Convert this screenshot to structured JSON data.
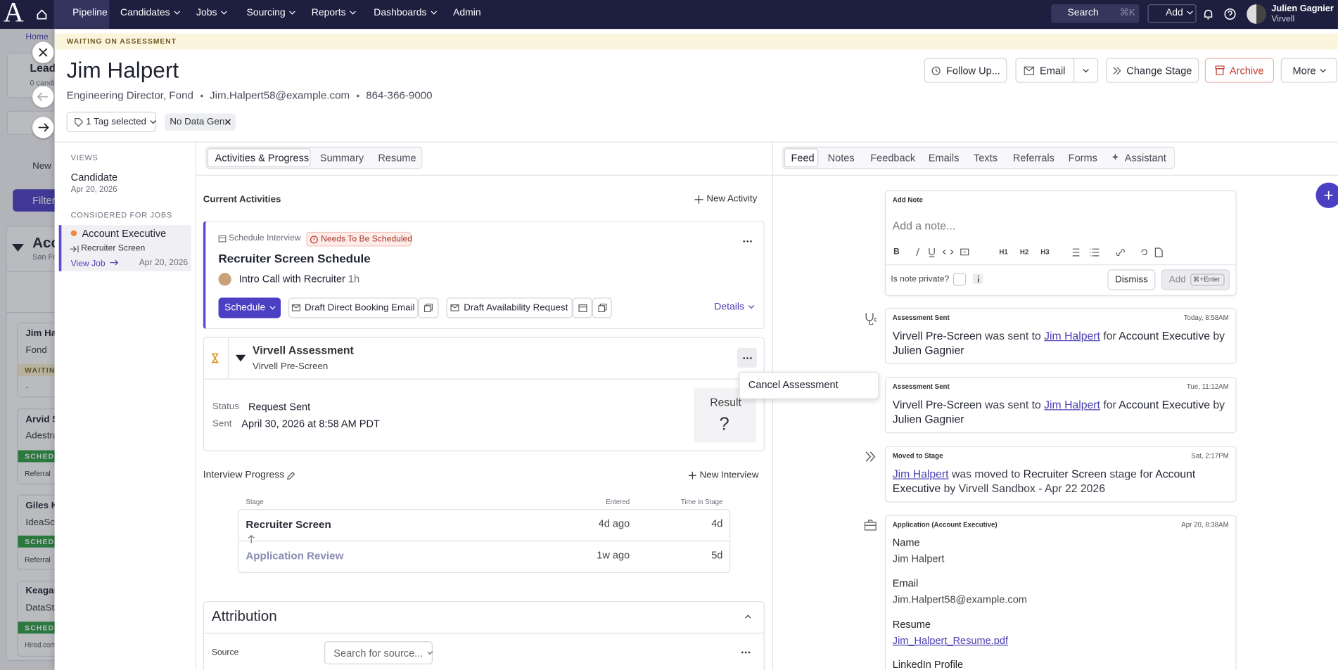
{
  "nav": {
    "logo": "A",
    "items": [
      "Pipeline",
      "Candidates",
      "Jobs",
      "Sourcing",
      "Reports",
      "Dashboards",
      "Admin"
    ],
    "search": "Search",
    "search_shortcut": "⌘K",
    "add": "Add",
    "user_name": "Julien Gagnier",
    "user_org": "Virvell"
  },
  "background": {
    "breadcrumb": "Home",
    "list_title": "Leads",
    "list_count": "0 candi",
    "new": "New",
    "filter": "Filter",
    "job_title": "Acc",
    "job_location": "San Fra",
    "cards": [
      {
        "name": "Jim Hal",
        "company": "Fond",
        "status": "WAITING",
        "source": "-"
      },
      {
        "name": "Arvid S",
        "company": "Adestra",
        "status": "SCHEDU",
        "source": "Referral"
      },
      {
        "name": "Giles K",
        "company": "IdeaSca",
        "status": "SCHEDU",
        "source": "Referral"
      },
      {
        "name": "Keagan",
        "company": "DataSta",
        "status": "SCHEDU",
        "source": "Hired.com"
      }
    ]
  },
  "banner": "WAITING ON ASSESSMENT",
  "candidate": {
    "name": "Jim Halpert",
    "title": "Engineering Director, Fond",
    "email": "Jim.Halpert58@example.com",
    "phone": "864-366-9000",
    "tags": "1 Tag selected",
    "tag": "No Data Gen"
  },
  "actions": [
    "Follow Up...",
    "Email",
    "Change Stage",
    "Archive",
    "More"
  ],
  "sidebar": {
    "views_heading": "VIEWS",
    "view_name": "Candidate",
    "view_date": "Apr 20, 2026",
    "jobs_heading": "CONSIDERED FOR JOBS",
    "job": "Account Executive",
    "stage": "Recruiter Screen",
    "view_job": "View Job",
    "job_date": "Apr 20, 2026"
  },
  "middle": {
    "tabs": [
      "Activities & Progress",
      "Summary",
      "Resume"
    ],
    "current_activities": "Current Activities",
    "new_activity": "New Activity",
    "activity": {
      "type": "Schedule Interview",
      "status": "Needs To Be Scheduled",
      "title": "Recruiter Screen Schedule",
      "interview": "Intro Call with Recruiter",
      "duration": "1h",
      "schedule": "Schedule",
      "draft_email": "Draft Direct Booking Email",
      "draft_request": "Draft Availability Request",
      "details": "Details"
    },
    "assessment": {
      "title": "Virvell Assessment",
      "subtitle": "Virvell Pre-Screen",
      "status_label": "Status",
      "status": "Request Sent",
      "sent_label": "Sent",
      "sent": "April 30, 2026 at 8:58 AM PDT",
      "result_label": "Result",
      "result": "?",
      "menu_item": "Cancel Assessment"
    },
    "interview_progress": {
      "title": "Interview Progress",
      "new_interview": "New Interview",
      "columns": [
        "Stage",
        "Entered",
        "Time in Stage"
      ],
      "rows": [
        [
          "Recruiter Screen",
          "4d ago",
          "4d"
        ],
        [
          "Application Review",
          "1w ago",
          "5d"
        ]
      ]
    },
    "attribution": {
      "title": "Attribution",
      "source_label": "Source",
      "source_placeholder": "Search for source..."
    }
  },
  "feed": {
    "tabs": [
      "Feed",
      "Notes",
      "Feedback",
      "Emails",
      "Texts",
      "Referrals",
      "Forms",
      "Assistant"
    ],
    "note": {
      "heading": "Add Note",
      "placeholder": "Add a note...",
      "toolbar": [
        "H1",
        "H2",
        "H3"
      ],
      "private_label": "Is note private?",
      "dismiss": "Dismiss",
      "add": "Add",
      "shortcut": "⌘+Enter"
    },
    "items": [
      {
        "type": "Assessment Sent",
        "time": "Today, 8:58AM",
        "parts": [
          "Virvell Pre-Screen",
          "was sent to",
          "Jim Halpert",
          "for",
          "Account Executive",
          "by",
          "Julien Gagnier"
        ]
      },
      {
        "type": "Assessment Sent",
        "time": "Tue, 11:12AM",
        "parts": [
          "Virvell Pre-Screen",
          "was sent to",
          "Jim Halpert",
          "for",
          "Account Executive",
          "by",
          "Julien Gagnier"
        ]
      },
      {
        "type": "Moved to Stage",
        "time": "Sat, 2:17PM",
        "parts": [
          "Jim Halpert",
          "was moved to",
          "Recruiter Screen",
          "stage for",
          "Account Executive",
          "by Virvell Sandbox - Apr 22 2026"
        ]
      }
    ],
    "application": {
      "type": "Application (Account Executive)",
      "time": "Apr 20, 8:38AM",
      "fields": [
        {
          "label": "Name",
          "value": "Jim Halpert"
        },
        {
          "label": "Email",
          "value": "Jim.Halpert58@example.com"
        },
        {
          "label": "Resume",
          "value": "Jim_Halpert_Resume.pdf"
        },
        {
          "label": "LinkedIn Profile"
        }
      ]
    }
  }
}
